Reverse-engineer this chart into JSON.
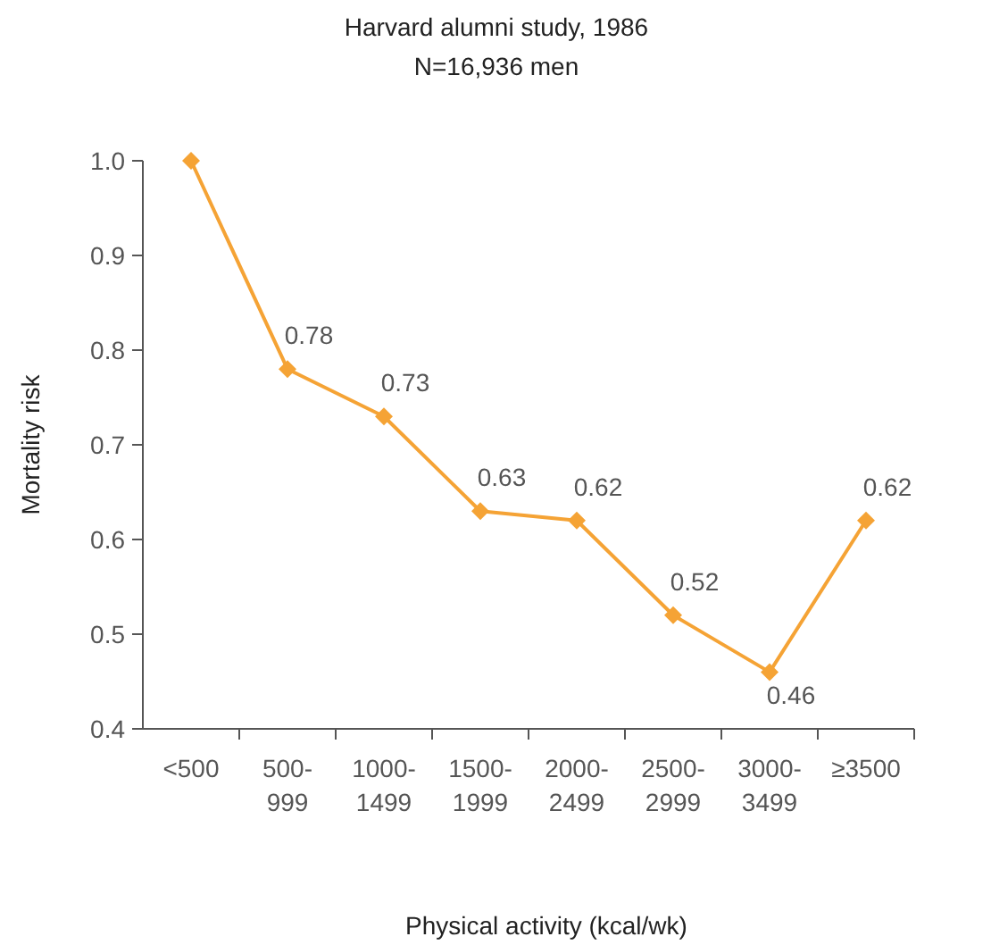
{
  "chart_data": {
    "type": "line",
    "title": "Harvard alumni study, 1986",
    "subtitle": "N=16,936 men",
    "xlabel": "Physical activity (kcal/wk)",
    "ylabel": "Mortality risk",
    "categories": [
      "<500",
      "500-999",
      "1000-1499",
      "1500-1999",
      "2000-2499",
      "2500-2999",
      "3000-3499",
      "≥3500"
    ],
    "series": [
      {
        "color": "#f5a335",
        "values": [
          1.0,
          0.78,
          0.73,
          0.63,
          0.62,
          0.52,
          0.46,
          0.62
        ],
        "value_labels": [
          null,
          "0.78",
          "0.73",
          "0.63",
          "0.62",
          "0.52",
          "0.46",
          "0.62"
        ]
      }
    ],
    "ylim": [
      0.4,
      1.0
    ],
    "yticks": [
      0.4,
      0.5,
      0.6,
      0.7,
      0.8,
      0.9,
      {
        "value": 1.0,
        "label": "1.0"
      }
    ],
    "marker": "diamond",
    "line_style": "solid",
    "grid": false
  }
}
